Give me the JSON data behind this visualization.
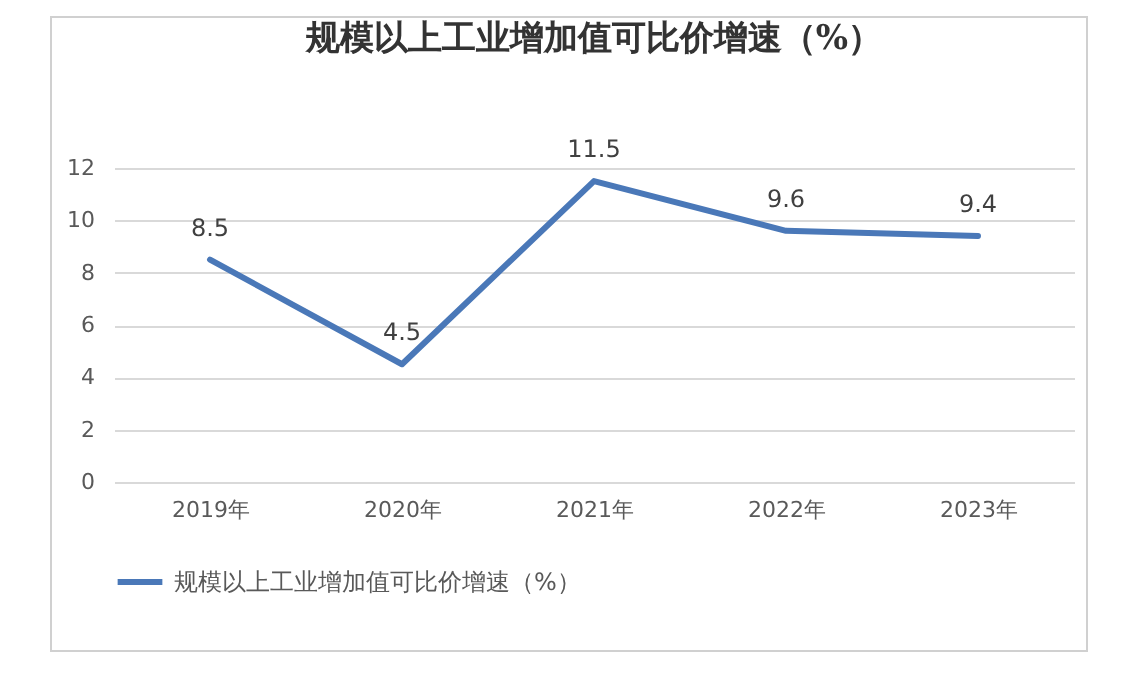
{
  "chart_data": {
    "type": "line",
    "title": "规模以上工业增加值可比价增速（%）",
    "categories": [
      "2019年",
      "2020年",
      "2021年",
      "2022年",
      "2023年"
    ],
    "series": [
      {
        "name": "规模以上工业增加值可比价增速（%）",
        "color": "#4a78b8",
        "values": [
          8.5,
          4.5,
          11.5,
          9.6,
          9.4
        ]
      }
    ],
    "ylim": [
      0,
      12
    ],
    "yticks": [
      0,
      2,
      4,
      6,
      8,
      10,
      12
    ],
    "grid": "y",
    "legend": "bottom",
    "data_labels": true,
    "marker": "none",
    "line_style": "solid"
  }
}
